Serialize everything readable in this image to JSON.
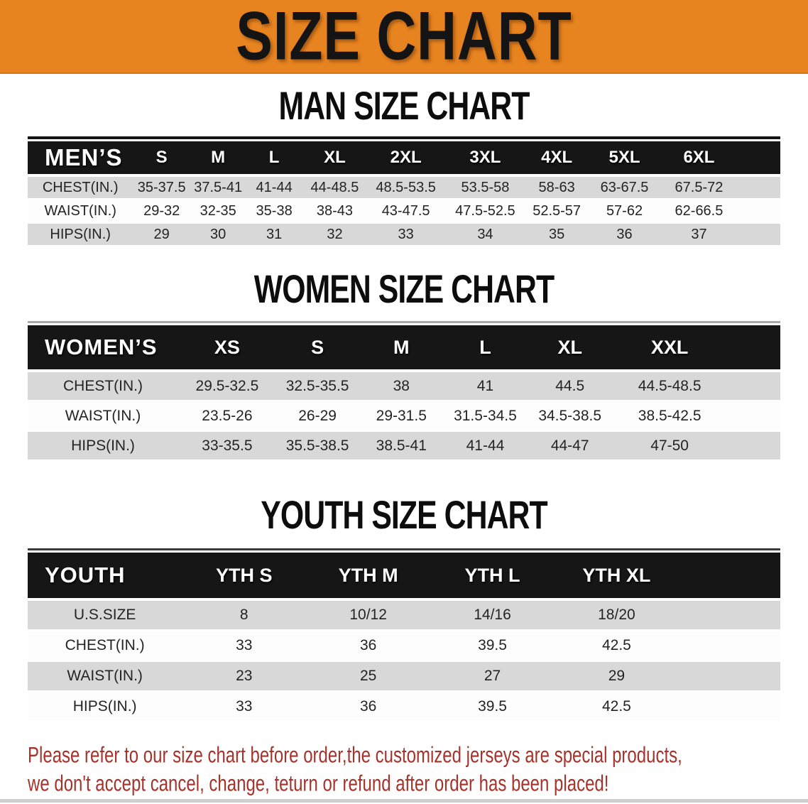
{
  "banner": {
    "title": "SIZE CHART"
  },
  "colors": {
    "banner_bg": "#E88420",
    "header_bg": "#161616",
    "row_stripe": "#D8D8D8",
    "footer_text": "#A5322B"
  },
  "sections": [
    {
      "heading": "MAN SIZE CHART",
      "table": {
        "corner_label": "MEN’S",
        "columns": [
          "S",
          "M",
          "L",
          "XL",
          "2XL",
          "3XL",
          "4XL",
          "5XL",
          "6XL"
        ],
        "rows": [
          {
            "label": "CHEST(IN.)",
            "values": [
              "35-37.5",
              "37.5-41",
              "41-44",
              "44-48.5",
              "48.5-53.5",
              "53.5-58",
              "58-63",
              "63-67.5",
              "67.5-72"
            ]
          },
          {
            "label": "WAIST(IN.)",
            "values": [
              "29-32",
              "32-35",
              "35-38",
              "38-43",
              "43-47.5",
              "47.5-52.5",
              "52.5-57",
              "57-62",
              "62-66.5"
            ]
          },
          {
            "label": "HIPS(IN.)",
            "values": [
              "29",
              "30",
              "31",
              "32",
              "33",
              "34",
              "35",
              "36",
              "37"
            ]
          }
        ]
      }
    },
    {
      "heading": "WOMEN SIZE CHART",
      "table": {
        "corner_label": "WOMEN’S",
        "columns": [
          "XS",
          "S",
          "M",
          "L",
          "XL",
          "XXL"
        ],
        "rows": [
          {
            "label": "CHEST(IN.)",
            "values": [
              "29.5-32.5",
              "32.5-35.5",
              "38",
              "41",
              "44.5",
              "44.5-48.5"
            ]
          },
          {
            "label": "WAIST(IN.)",
            "values": [
              "23.5-26",
              "26-29",
              "29-31.5",
              "31.5-34.5",
              "34.5-38.5",
              "38.5-42.5"
            ]
          },
          {
            "label": "HIPS(IN.)",
            "values": [
              "33-35.5",
              "35.5-38.5",
              "38.5-41",
              "41-44",
              "44-47",
              "47-50"
            ]
          }
        ]
      }
    },
    {
      "heading": "YOUTH SIZE CHART",
      "table": {
        "corner_label": "YOUTH",
        "columns": [
          "YTH S",
          "YTH M",
          "YTH L",
          "YTH XL"
        ],
        "rows": [
          {
            "label": "U.S.SIZE",
            "values": [
              "8",
              "10/12",
              "14/16",
              "18/20"
            ]
          },
          {
            "label": "CHEST(IN.)",
            "values": [
              "33",
              "36",
              "39.5",
              "42.5"
            ]
          },
          {
            "label": "WAIST(IN.)",
            "values": [
              "23",
              "25",
              "27",
              "29"
            ]
          },
          {
            "label": "HIPS(IN.)",
            "values": [
              "33",
              "36",
              "39.5",
              "42.5"
            ]
          }
        ]
      }
    }
  ],
  "footer": {
    "lines": [
      "Please refer to our size chart before order,the customized jerseys are special products,",
      "we don't accept cancel, change, teturn or refund after order has been placed!"
    ]
  }
}
